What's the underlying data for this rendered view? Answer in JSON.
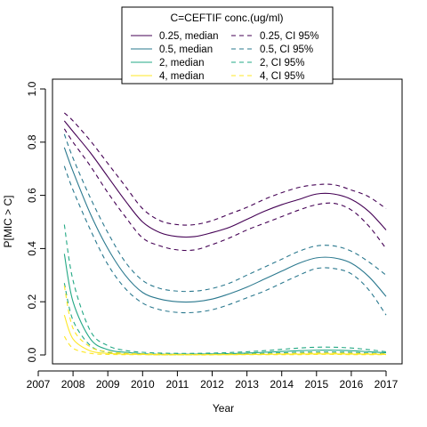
{
  "chart_data": {
    "type": "line",
    "xlabel": "Year",
    "ylabel": "P[MIC > C]",
    "xlim": [
      2007,
      2017
    ],
    "ylim": [
      0,
      1
    ],
    "xticks": [
      2007,
      2008,
      2009,
      2010,
      2011,
      2012,
      2013,
      2014,
      2015,
      2016,
      2017
    ],
    "yticks": [
      "0.0",
      "0.2",
      "0.4",
      "0.6",
      "0.8",
      "1.0"
    ],
    "legend": {
      "title": "C=CEFTIF conc.(ug/ml)",
      "placement": "top-center",
      "entries": [
        {
          "label": "0.25, median",
          "color": "#440154",
          "dash": "solid"
        },
        {
          "label": "0.5, median",
          "color": "#2A788E",
          "dash": "solid"
        },
        {
          "label": "2, median",
          "color": "#22A884",
          "dash": "solid"
        },
        {
          "label": "4, median",
          "color": "#FDE725",
          "dash": "solid"
        },
        {
          "label": "0.25, CI 95%",
          "color": "#440154",
          "dash": "dashed"
        },
        {
          "label": "0.5, CI 95%",
          "color": "#2A788E",
          "dash": "dashed"
        },
        {
          "label": "2, CI 95%",
          "color": "#22A884",
          "dash": "dashed"
        },
        {
          "label": "4, CI 95%",
          "color": "#FDE725",
          "dash": "dashed"
        }
      ]
    },
    "x": [
      2007.75,
      2008,
      2008.5,
      2009,
      2009.5,
      2010,
      2010.5,
      2011,
      2011.5,
      2012,
      2012.5,
      2013,
      2013.5,
      2014,
      2014.5,
      2015,
      2015.5,
      2016,
      2016.5,
      2017
    ],
    "series": [
      {
        "name": "0.25, median",
        "color": "#440154",
        "dash": "solid",
        "values": [
          0.88,
          0.84,
          0.76,
          0.67,
          0.58,
          0.5,
          0.46,
          0.445,
          0.445,
          0.46,
          0.48,
          0.51,
          0.54,
          0.565,
          0.585,
          0.605,
          0.605,
          0.585,
          0.54,
          0.47
        ]
      },
      {
        "name": "0.25, CI 95% upper",
        "color": "#440154",
        "dash": "dashed",
        "values": [
          0.91,
          0.88,
          0.805,
          0.72,
          0.635,
          0.55,
          0.505,
          0.49,
          0.49,
          0.505,
          0.53,
          0.555,
          0.585,
          0.61,
          0.63,
          0.64,
          0.64,
          0.62,
          0.595,
          0.55
        ]
      },
      {
        "name": "0.25, CI 95% lower",
        "color": "#440154",
        "dash": "dashed",
        "values": [
          0.85,
          0.8,
          0.71,
          0.61,
          0.52,
          0.44,
          0.41,
          0.395,
          0.395,
          0.415,
          0.44,
          0.47,
          0.495,
          0.52,
          0.545,
          0.565,
          0.57,
          0.545,
          0.485,
          0.4
        ]
      },
      {
        "name": "0.5, median",
        "color": "#2A788E",
        "dash": "solid",
        "values": [
          0.78,
          0.69,
          0.53,
          0.4,
          0.3,
          0.235,
          0.21,
          0.2,
          0.2,
          0.21,
          0.23,
          0.255,
          0.285,
          0.315,
          0.345,
          0.365,
          0.365,
          0.345,
          0.295,
          0.22
        ]
      },
      {
        "name": "0.5, CI 95% upper",
        "color": "#2A788E",
        "dash": "dashed",
        "values": [
          0.83,
          0.74,
          0.59,
          0.46,
          0.35,
          0.28,
          0.25,
          0.24,
          0.24,
          0.25,
          0.27,
          0.3,
          0.33,
          0.36,
          0.39,
          0.41,
          0.41,
          0.39,
          0.35,
          0.3
        ]
      },
      {
        "name": "0.5, CI 95% lower",
        "color": "#2A788E",
        "dash": "dashed",
        "values": [
          0.71,
          0.62,
          0.47,
          0.34,
          0.25,
          0.195,
          0.17,
          0.16,
          0.16,
          0.17,
          0.19,
          0.215,
          0.24,
          0.27,
          0.3,
          0.325,
          0.325,
          0.305,
          0.245,
          0.15
        ]
      },
      {
        "name": "2, median",
        "color": "#22A884",
        "dash": "solid",
        "values": [
          0.38,
          0.2,
          0.06,
          0.02,
          0.01,
          0.005,
          0.003,
          0.003,
          0.003,
          0.004,
          0.005,
          0.007,
          0.01,
          0.013,
          0.016,
          0.018,
          0.018,
          0.016,
          0.012,
          0.008
        ]
      },
      {
        "name": "2, CI 95% upper",
        "color": "#22A884",
        "dash": "dashed",
        "values": [
          0.49,
          0.28,
          0.09,
          0.035,
          0.017,
          0.01,
          0.007,
          0.006,
          0.006,
          0.007,
          0.009,
          0.012,
          0.016,
          0.021,
          0.026,
          0.029,
          0.029,
          0.026,
          0.02,
          0.012
        ]
      },
      {
        "name": "2, CI 95% lower",
        "color": "#22A884",
        "dash": "dashed",
        "values": [
          0.27,
          0.13,
          0.035,
          0.01,
          0.005,
          0.002,
          0.001,
          0.001,
          0.001,
          0.002,
          0.003,
          0.004,
          0.006,
          0.008,
          0.01,
          0.011,
          0.011,
          0.01,
          0.007,
          0.004
        ]
      },
      {
        "name": "4, median",
        "color": "#FDE725",
        "dash": "solid",
        "values": [
          0.15,
          0.06,
          0.015,
          0.006,
          0.003,
          0.002,
          0.001,
          0.001,
          0.001,
          0.001,
          0.001,
          0.002,
          0.002,
          0.003,
          0.003,
          0.004,
          0.004,
          0.003,
          0.003,
          0.002
        ]
      },
      {
        "name": "4, CI 95% upper",
        "color": "#FDE725",
        "dash": "dashed",
        "values": [
          0.26,
          0.1,
          0.03,
          0.012,
          0.006,
          0.004,
          0.003,
          0.002,
          0.002,
          0.002,
          0.003,
          0.003,
          0.004,
          0.005,
          0.006,
          0.007,
          0.007,
          0.006,
          0.005,
          0.004
        ]
      },
      {
        "name": "4, CI 95% lower",
        "color": "#FDE725",
        "dash": "dashed",
        "values": [
          0.07,
          0.025,
          0.006,
          0.002,
          0.001,
          0.001,
          0.0,
          0.0,
          0.0,
          0.0,
          0.001,
          0.001,
          0.001,
          0.001,
          0.001,
          0.002,
          0.002,
          0.001,
          0.001,
          0.001
        ]
      }
    ]
  }
}
